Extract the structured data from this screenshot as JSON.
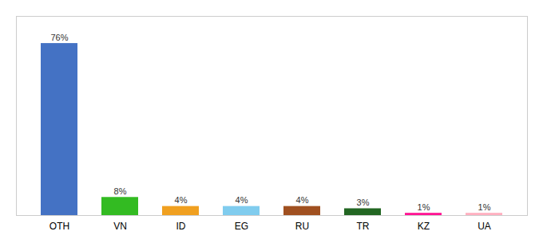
{
  "chart_data": {
    "type": "bar",
    "categories": [
      "OTH",
      "VN",
      "ID",
      "EG",
      "RU",
      "TR",
      "KZ",
      "UA"
    ],
    "values": [
      76,
      8,
      4,
      4,
      4,
      3,
      1,
      1
    ],
    "value_labels": [
      "76%",
      "8%",
      "4%",
      "4%",
      "4%",
      "3%",
      "1%",
      "1%"
    ],
    "colors": [
      "#4472C4",
      "#33BB22",
      "#F0A020",
      "#80CCEE",
      "#A05020",
      "#226622",
      "#FF1493",
      "#FFB0C0"
    ],
    "ylim": [
      0,
      88
    ],
    "data_labels": true,
    "tick_labels": "x"
  }
}
